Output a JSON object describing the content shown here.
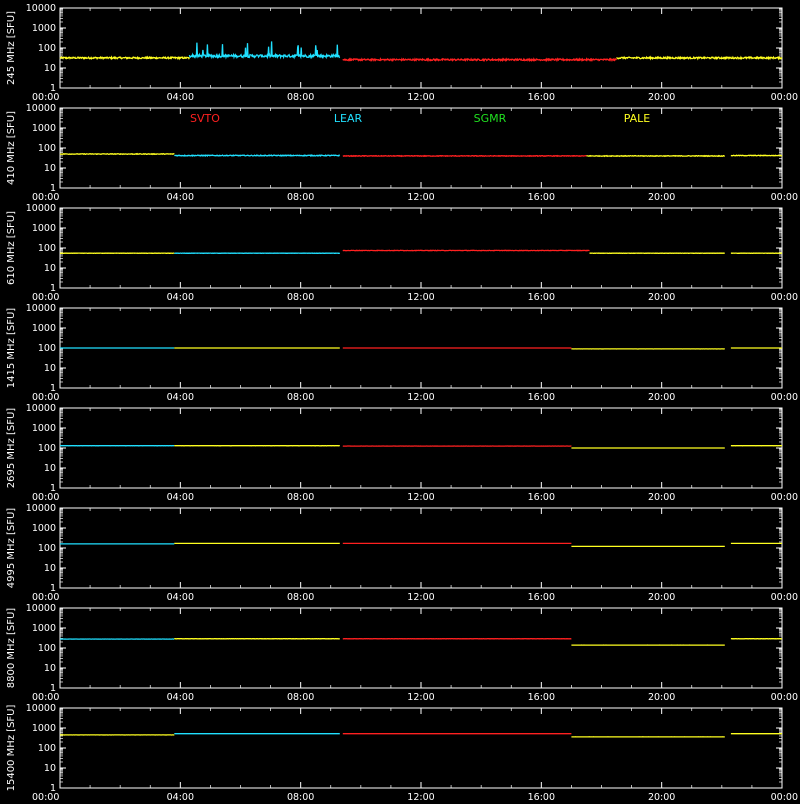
{
  "chart_data": {
    "type": "line",
    "x_ticks": [
      "00:00",
      "04:00",
      "08:00",
      "12:00",
      "16:00",
      "20:00",
      "00:00"
    ],
    "x_range_hours": [
      0,
      24
    ],
    "y_scale": "log",
    "y_range": [
      1,
      10000
    ],
    "y_ticks": [
      "1",
      "10",
      "100",
      "1000",
      "10000"
    ],
    "unit": "[SFU]",
    "legend": [
      {
        "name": "SVTO",
        "color": "#ff2020"
      },
      {
        "name": "LEAR",
        "color": "#20e0ff"
      },
      {
        "name": "SGMR",
        "color": "#20e020"
      },
      {
        "name": "PALE",
        "color": "#ffff20"
      }
    ],
    "panels": [
      {
        "ylabel": "245 MHz",
        "base": 30,
        "segments": [
          {
            "station": "PALE",
            "x0": 0,
            "x1": 4.3,
            "y": 32,
            "noise": 0.08
          },
          {
            "station": "LEAR",
            "x0": 4.3,
            "x1": 9.3,
            "y": 40,
            "noise": 0.14
          },
          {
            "station": "SVTO",
            "x0": 9.4,
            "x1": 18.5,
            "y": 26,
            "noise": 0.08
          },
          {
            "station": "PALE",
            "x0": 18.5,
            "x1": 24,
            "y": 32,
            "noise": 0.08
          }
        ]
      },
      {
        "ylabel": "410 MHz",
        "base": 45,
        "segments": [
          {
            "station": "PALE",
            "x0": 0,
            "x1": 3.8,
            "y": 50,
            "noise": 0.03
          },
          {
            "station": "LEAR",
            "x0": 3.8,
            "x1": 9.3,
            "y": 42,
            "noise": 0.04
          },
          {
            "station": "SVTO",
            "x0": 9.4,
            "x1": 17.5,
            "y": 40,
            "noise": 0.03
          },
          {
            "station": "PALE",
            "x0": 17.5,
            "x1": 22.1,
            "y": 40,
            "noise": 0.03
          },
          {
            "station": "PALE",
            "x0": 22.3,
            "x1": 24,
            "y": 42,
            "noise": 0.03
          }
        ]
      },
      {
        "ylabel": "610 MHz",
        "base": 55,
        "segments": [
          {
            "station": "PALE",
            "x0": 0,
            "x1": 3.8,
            "y": 55,
            "noise": 0.01
          },
          {
            "station": "LEAR",
            "x0": 3.8,
            "x1": 9.3,
            "y": 55,
            "noise": 0.01
          },
          {
            "station": "SVTO",
            "x0": 9.4,
            "x1": 17.6,
            "y": 75,
            "noise": 0.02
          },
          {
            "station": "PALE",
            "x0": 17.6,
            "x1": 22.1,
            "y": 55,
            "noise": 0.01
          },
          {
            "station": "PALE",
            "x0": 22.3,
            "x1": 24,
            "y": 55,
            "noise": 0.01
          }
        ]
      },
      {
        "ylabel": "1415 MHz",
        "base": 100,
        "segments": [
          {
            "station": "LEAR",
            "x0": 0,
            "x1": 3.8,
            "y": 100,
            "noise": 0.005
          },
          {
            "station": "PALE",
            "x0": 3.8,
            "x1": 9.3,
            "y": 100,
            "noise": 0.005
          },
          {
            "station": "SVTO",
            "x0": 9.4,
            "x1": 17.0,
            "y": 100,
            "noise": 0.005
          },
          {
            "station": "PALE",
            "x0": 17.0,
            "x1": 22.1,
            "y": 90,
            "noise": 0.005
          },
          {
            "station": "PALE",
            "x0": 22.3,
            "x1": 24,
            "y": 100,
            "noise": 0.005
          }
        ]
      },
      {
        "ylabel": "2695 MHz",
        "base": 130,
        "segments": [
          {
            "station": "LEAR",
            "x0": 0,
            "x1": 3.8,
            "y": 130,
            "noise": 0.004
          },
          {
            "station": "PALE",
            "x0": 3.8,
            "x1": 9.3,
            "y": 130,
            "noise": 0.004
          },
          {
            "station": "SVTO",
            "x0": 9.4,
            "x1": 17.0,
            "y": 125,
            "noise": 0.004
          },
          {
            "station": "PALE",
            "x0": 17.0,
            "x1": 22.1,
            "y": 100,
            "noise": 0.004
          },
          {
            "station": "PALE",
            "x0": 22.3,
            "x1": 24,
            "y": 130,
            "noise": 0.004
          }
        ]
      },
      {
        "ylabel": "4995 MHz",
        "base": 160,
        "segments": [
          {
            "station": "LEAR",
            "x0": 0,
            "x1": 3.8,
            "y": 160,
            "noise": 0.003
          },
          {
            "station": "PALE",
            "x0": 3.8,
            "x1": 9.3,
            "y": 170,
            "noise": 0.003
          },
          {
            "station": "SVTO",
            "x0": 9.4,
            "x1": 17.0,
            "y": 170,
            "noise": 0.003
          },
          {
            "station": "PALE",
            "x0": 17.0,
            "x1": 22.1,
            "y": 120,
            "noise": 0.003
          },
          {
            "station": "PALE",
            "x0": 22.3,
            "x1": 24,
            "y": 170,
            "noise": 0.003
          }
        ]
      },
      {
        "ylabel": "8800 MHz",
        "base": 280,
        "segments": [
          {
            "station": "LEAR",
            "x0": 0,
            "x1": 3.8,
            "y": 280,
            "noise": 0.003
          },
          {
            "station": "PALE",
            "x0": 3.8,
            "x1": 9.3,
            "y": 290,
            "noise": 0.003
          },
          {
            "station": "SVTO",
            "x0": 9.4,
            "x1": 17.0,
            "y": 290,
            "noise": 0.003
          },
          {
            "station": "PALE",
            "x0": 17.0,
            "x1": 22.1,
            "y": 140,
            "noise": 0.003
          },
          {
            "station": "PALE",
            "x0": 22.3,
            "x1": 24,
            "y": 290,
            "noise": 0.003
          }
        ]
      },
      {
        "ylabel": "15400 MHz",
        "base": 520,
        "segments": [
          {
            "station": "PALE",
            "x0": 0,
            "x1": 3.8,
            "y": 450,
            "noise": 0.003
          },
          {
            "station": "LEAR",
            "x0": 3.8,
            "x1": 9.3,
            "y": 520,
            "noise": 0.003
          },
          {
            "station": "SVTO",
            "x0": 9.4,
            "x1": 17.0,
            "y": 520,
            "noise": 0.003
          },
          {
            "station": "PALE",
            "x0": 17.0,
            "x1": 22.1,
            "y": 360,
            "noise": 0.003
          },
          {
            "station": "PALE",
            "x0": 22.3,
            "x1": 24,
            "y": 520,
            "noise": 0.003
          }
        ]
      }
    ]
  }
}
